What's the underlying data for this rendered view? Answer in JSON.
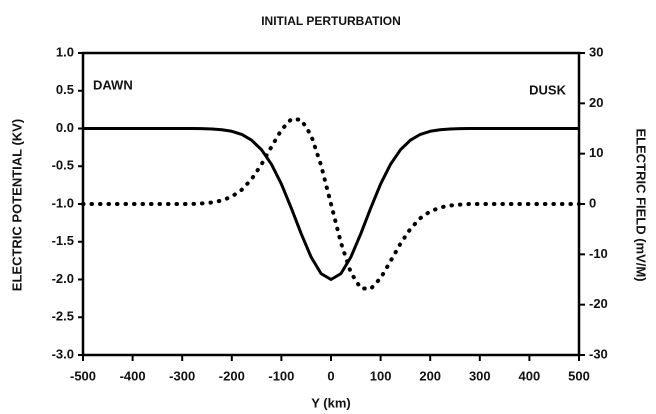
{
  "chart_data": {
    "type": "line",
    "title": "INITIAL PERTURBATION",
    "xlabel": "Y (km)",
    "ylabel": "ELECTRIC POTENTIAL (KV)",
    "y2label": "ELECTRIC FIELD (mV/M)",
    "annotations": [
      "DAWN",
      "DUSK"
    ],
    "x": [
      -500,
      -400,
      -300,
      -280,
      -260,
      -240,
      -220,
      -200,
      -180,
      -160,
      -140,
      -120,
      -100,
      -80,
      -60,
      -40,
      -20,
      0,
      20,
      40,
      60,
      80,
      100,
      120,
      140,
      160,
      180,
      200,
      220,
      240,
      260,
      280,
      300,
      400,
      500
    ],
    "series": [
      {
        "color": "#000000",
        "style": "solid",
        "axis": "y",
        "values": [
          0,
          0,
          0,
          0,
          -0.002,
          -0.006,
          -0.016,
          -0.037,
          -0.078,
          -0.155,
          -0.282,
          -0.474,
          -0.736,
          -1.055,
          -1.395,
          -1.704,
          -1.922,
          -2,
          -1.922,
          -1.704,
          -1.395,
          -1.055,
          -0.736,
          -0.474,
          -0.282,
          -0.155,
          -0.078,
          -0.037,
          -0.016,
          -0.006,
          -0.002,
          0,
          0,
          0,
          0
        ]
      },
      {
        "color": "#000000",
        "style": "dotted",
        "axis": "y2",
        "values": [
          0,
          0,
          0,
          0,
          0.12,
          0.3,
          0.7,
          1.47,
          2.82,
          4.95,
          7.89,
          11.37,
          14.72,
          16.87,
          16.74,
          13.63,
          7.69,
          0,
          -7.69,
          -13.63,
          -16.74,
          -16.87,
          -14.72,
          -11.37,
          -7.89,
          -4.95,
          -2.82,
          -1.47,
          -0.7,
          -0.3,
          -0.12,
          0,
          0,
          0,
          0
        ]
      }
    ],
    "xlim": [
      -500,
      500
    ],
    "xticks": [
      -500,
      -400,
      -300,
      -200,
      -100,
      0,
      100,
      200,
      300,
      400,
      500
    ],
    "ylim": [
      -3,
      1
    ],
    "yticks": [
      {
        "value": 1,
        "label": "1.0"
      },
      0.5,
      {
        "value": 0,
        "label": "0.0"
      },
      -0.5,
      {
        "value": -1,
        "label": "-1.0"
      },
      -1.5,
      {
        "value": -2,
        "label": "-2.0"
      },
      -2.5,
      {
        "value": -3,
        "label": "-3.0"
      }
    ],
    "y2lim": [
      -30,
      30
    ],
    "y2ticks": [
      30,
      20,
      10,
      0,
      -10,
      -20,
      -30
    ],
    "grid": false
  }
}
